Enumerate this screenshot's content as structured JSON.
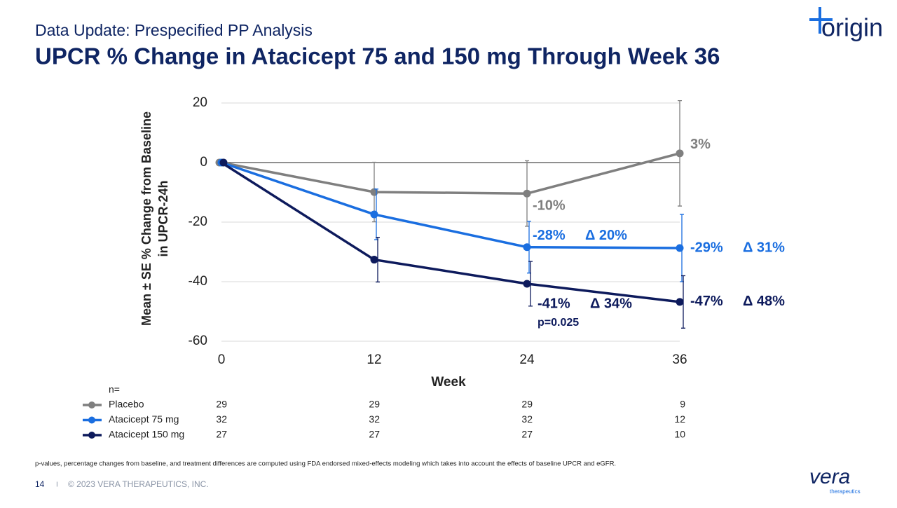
{
  "chart_data": {
    "type": "line",
    "subtitle": "Data Update: Prespecified PP Analysis",
    "title": "UPCR % Change in Atacicept 75 and 150 mg Through Week 36",
    "x_label": "Week",
    "y_label": [
      "Mean ± SE % Change from Baseline",
      "in UPCR-24h"
    ],
    "x": [
      0,
      12,
      24,
      36
    ],
    "xlim": [
      0,
      36
    ],
    "xticks": [
      0,
      12,
      24,
      36
    ],
    "ylim": [
      -60,
      20
    ],
    "yticks": [
      -60,
      -40,
      -20,
      0,
      20
    ],
    "grid": true,
    "n_header": "n=",
    "series": [
      {
        "name": "Placebo",
        "color": "#7f7f7f",
        "values": [
          0,
          -9.9,
          -10.4,
          3.1
        ],
        "errors": [
          null,
          10,
          11,
          17.7
        ],
        "value_labels": [
          null,
          null,
          "-10%",
          "3%"
        ],
        "n": [
          29,
          29,
          29,
          9
        ]
      },
      {
        "name": "Atacicept 75 mg",
        "color": "#1a6ee0",
        "values": [
          0,
          -17.4,
          -28.4,
          -28.7
        ],
        "errors": [
          null,
          8.5,
          8.7,
          11.3
        ],
        "value_labels": [
          null,
          null,
          "-28%",
          "-29%"
        ],
        "delta_labels": [
          null,
          null,
          "Δ 20%",
          "Δ 31%"
        ],
        "n": [
          32,
          32,
          32,
          12
        ]
      },
      {
        "name": "Atacicept 150 mg",
        "color": "#0d1a5c",
        "values": [
          0,
          -32.6,
          -40.7,
          -46.8
        ],
        "errors": [
          null,
          7.5,
          7.5,
          8.8
        ],
        "value_labels": [
          null,
          null,
          "-41%",
          "-47%"
        ],
        "delta_labels": [
          null,
          null,
          "Δ 34%",
          "Δ 48%"
        ],
        "p_labels": [
          null,
          null,
          "p=0.025",
          null
        ],
        "n": [
          27,
          27,
          27,
          10
        ]
      }
    ]
  },
  "footnote": "p-values, percentage changes from baseline, and treatment differences are computed using FDA endorsed mixed-effects modeling which takes into account the effects of baseline UPCR and eGFR.",
  "footer": {
    "page": "14",
    "separator": "I",
    "copyright": "© 2023 VERA THERAPEUTICS, INC."
  },
  "logos": {
    "origin": "origin",
    "vera": "vera",
    "vera_sub": "therapeutics"
  }
}
